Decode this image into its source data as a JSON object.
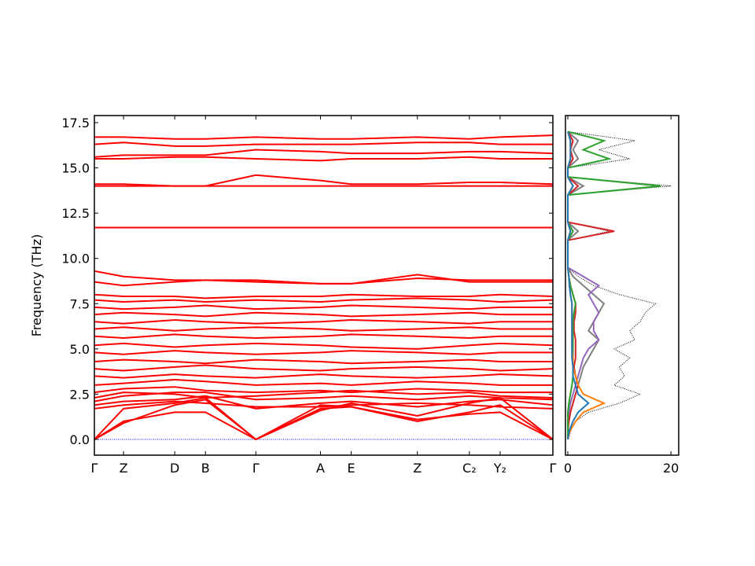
{
  "chart_data": [
    {
      "type": "line",
      "ylabel": "Frequency (THz)",
      "color": "#ff0000",
      "ylim": [
        -0.87,
        17.89
      ],
      "yticks": [
        {
          "value": 0,
          "label": "0.0"
        },
        2.5,
        {
          "value": 5,
          "label": "5.0"
        },
        7.5,
        {
          "value": 10,
          "label": "10.0"
        },
        12.5,
        {
          "value": 15,
          "label": "15.0"
        },
        17.5
      ],
      "xlim": [
        0,
        5.82
      ],
      "xticks": [
        {
          "value": 0,
          "label": "Γ"
        },
        {
          "value": 0.37,
          "label": "Z"
        },
        {
          "value": 1.02,
          "label": "D"
        },
        {
          "value": 1.41,
          "label": "B"
        },
        {
          "value": 2.05,
          "label": "Γ"
        },
        {
          "value": 2.87,
          "label": "A"
        },
        {
          "value": 3.26,
          "label": "E"
        },
        {
          "value": 4.1,
          "label": "Z"
        },
        {
          "value": 4.76,
          "label": "C₂"
        },
        {
          "value": 5.15,
          "label": "Y₂"
        },
        {
          "value": 5.82,
          "label": "Γ"
        }
      ],
      "x": [
        0,
        0.37,
        1.02,
        1.41,
        2.05,
        2.87,
        3.26,
        4.1,
        4.76,
        5.15,
        5.82
      ],
      "series": [
        {
          "color": "#0000ff",
          "style": "dotted",
          "values": [
            0,
            0,
            0,
            0,
            0,
            0,
            0,
            0,
            0,
            0,
            0
          ]
        },
        {
          "values": [
            0,
            1.0,
            1.5,
            1.5,
            0,
            1.7,
            1.8,
            1.1,
            1.4,
            1.5,
            0
          ]
        },
        {
          "values": [
            0,
            0.9,
            1.9,
            2.2,
            0,
            1.9,
            1.8,
            1.0,
            1.5,
            1.9,
            0
          ]
        },
        {
          "values": [
            0,
            1.7,
            2.0,
            2.3,
            0,
            1.6,
            2.0,
            1.3,
            2.0,
            2.3,
            0
          ]
        },
        {
          "values": [
            1.7,
            1.9,
            2.1,
            2.0,
            1.8,
            1.8,
            1.9,
            2.0,
            1.9,
            1.8,
            1.7
          ]
        },
        {
          "values": [
            1.9,
            2.1,
            2.2,
            2.4,
            1.7,
            2.0,
            2.1,
            1.8,
            2.1,
            2.2,
            1.9
          ]
        },
        {
          "values": [
            2.1,
            2.4,
            2.6,
            2.6,
            2.2,
            2.3,
            2.4,
            2.2,
            2.4,
            2.3,
            2.2
          ]
        },
        {
          "values": [
            2.3,
            2.6,
            2.5,
            2.3,
            2.4,
            2.6,
            2.7,
            2.5,
            2.6,
            2.4,
            2.3
          ]
        },
        {
          "values": [
            2.6,
            2.8,
            2.9,
            2.7,
            2.6,
            2.7,
            2.6,
            2.8,
            2.7,
            2.6,
            2.6
          ]
        },
        {
          "values": [
            3.0,
            3.1,
            3.3,
            3.2,
            3.0,
            3.1,
            3.0,
            3.2,
            3.1,
            3.0,
            3.0
          ]
        },
        {
          "values": [
            3.5,
            3.4,
            3.6,
            3.5,
            3.4,
            3.6,
            3.5,
            3.4,
            3.5,
            3.6,
            3.5
          ]
        },
        {
          "values": [
            3.9,
            3.8,
            4.0,
            4.1,
            3.9,
            3.8,
            3.9,
            4.0,
            3.9,
            3.8,
            3.9
          ]
        },
        {
          "values": [
            4.3,
            4.4,
            4.3,
            4.2,
            4.4,
            4.3,
            4.2,
            4.3,
            4.4,
            4.3,
            4.3
          ]
        },
        {
          "values": [
            4.8,
            4.7,
            4.9,
            4.8,
            4.7,
            4.8,
            4.9,
            4.8,
            4.7,
            4.8,
            4.8
          ]
        },
        {
          "values": [
            5.2,
            5.3,
            5.1,
            5.2,
            5.3,
            5.2,
            5.1,
            5.0,
            5.2,
            5.3,
            5.2
          ]
        },
        {
          "values": [
            5.7,
            5.6,
            5.8,
            5.7,
            5.6,
            5.7,
            5.8,
            5.7,
            5.6,
            5.7,
            5.7
          ]
        },
        {
          "values": [
            6.1,
            6.2,
            6.0,
            6.1,
            6.2,
            6.1,
            6.0,
            6.1,
            6.2,
            6.1,
            6.1
          ]
        },
        {
          "values": [
            6.5,
            6.4,
            6.6,
            6.5,
            6.4,
            6.5,
            6.6,
            6.5,
            6.4,
            6.5,
            6.5
          ]
        },
        {
          "values": [
            6.9,
            7.0,
            6.9,
            6.8,
            7.0,
            6.9,
            6.8,
            6.9,
            7.0,
            6.9,
            6.9
          ]
        },
        {
          "values": [
            7.3,
            7.2,
            7.3,
            7.4,
            7.2,
            7.3,
            7.4,
            7.3,
            7.2,
            7.3,
            7.3
          ]
        },
        {
          "values": [
            7.7,
            7.6,
            7.7,
            7.6,
            7.7,
            7.6,
            7.7,
            7.8,
            7.7,
            7.6,
            7.7
          ]
        },
        {
          "values": [
            8.0,
            7.9,
            7.9,
            7.8,
            7.9,
            7.9,
            8.0,
            7.9,
            7.9,
            8.0,
            7.9
          ]
        },
        {
          "values": [
            8.7,
            8.5,
            8.7,
            8.8,
            8.8,
            8.6,
            8.6,
            9.1,
            8.7,
            8.7,
            8.7
          ]
        },
        {
          "values": [
            9.3,
            9.0,
            8.8,
            8.8,
            8.7,
            8.6,
            8.6,
            8.9,
            8.8,
            8.8,
            8.8
          ]
        },
        {
          "values": [
            11.7,
            11.7,
            11.7,
            11.7,
            11.7,
            11.7,
            11.7,
            11.7,
            11.7,
            11.7,
            11.7
          ]
        },
        {
          "values": [
            14.0,
            14.0,
            14.0,
            14.0,
            14.0,
            14.0,
            14.0,
            14.0,
            14.0,
            14.0,
            14.0
          ]
        },
        {
          "values": [
            14.1,
            14.1,
            14.0,
            14.0,
            14.6,
            14.3,
            14.1,
            14.1,
            14.2,
            14.2,
            14.1
          ]
        },
        {
          "values": [
            15.5,
            15.5,
            15.6,
            15.6,
            15.5,
            15.4,
            15.5,
            15.5,
            15.6,
            15.5,
            15.5
          ]
        },
        {
          "values": [
            15.6,
            15.7,
            15.7,
            15.7,
            16.0,
            15.9,
            15.8,
            15.8,
            15.9,
            15.9,
            15.8
          ]
        },
        {
          "values": [
            16.3,
            16.4,
            16.2,
            16.2,
            16.3,
            16.3,
            16.3,
            16.4,
            16.4,
            16.3,
            16.3
          ]
        },
        {
          "values": [
            16.7,
            16.7,
            16.6,
            16.6,
            16.7,
            16.6,
            16.6,
            16.7,
            16.6,
            16.7,
            16.8
          ]
        }
      ]
    },
    {
      "type": "dos",
      "ylim": [
        -0.87,
        17.89
      ],
      "xlim": [
        -0.46,
        21.5
      ],
      "xticks": [
        0,
        20
      ],
      "y": [
        0,
        0.5,
        1,
        1.5,
        2,
        2.5,
        3,
        3.5,
        4,
        4.5,
        5,
        5.5,
        6,
        6.5,
        7,
        7.5,
        8,
        8.5,
        9,
        9.5,
        10,
        10.5,
        11,
        11.5,
        12,
        12.5,
        13,
        13.5,
        14,
        14.5,
        15,
        15.5,
        16,
        16.5,
        17
      ],
      "series": [
        {
          "color": "#000000",
          "style": "dotted",
          "values": [
            0,
            0.5,
            1.5,
            4,
            10,
            14,
            9,
            11,
            10,
            12,
            9,
            13,
            12,
            14,
            15,
            17,
            10,
            5,
            2,
            0,
            0,
            0,
            0,
            8,
            0,
            0,
            0,
            0,
            20,
            0,
            0,
            12,
            6,
            13,
            0
          ]
        },
        {
          "color": "#7f7f7f",
          "values": [
            0,
            0,
            0.2,
            0.5,
            1,
            1.5,
            2,
            2.5,
            3,
            4,
            5,
            6,
            4,
            5,
            6,
            7,
            5,
            3,
            1,
            0,
            0,
            0,
            0,
            2,
            0,
            0,
            0,
            0,
            3,
            0,
            0,
            2,
            1,
            2,
            0
          ]
        },
        {
          "color": "#9467bd",
          "values": [
            0,
            0,
            0,
            0.2,
            0.5,
            1,
            1.5,
            2,
            2.5,
            3,
            4,
            6,
            5,
            5,
            6,
            5,
            4,
            6,
            3,
            0,
            0,
            0,
            0,
            1,
            0,
            0,
            0,
            0,
            1,
            0,
            0,
            1,
            0.5,
            1,
            0
          ]
        },
        {
          "color": "#d62728",
          "values": [
            0,
            0,
            0.2,
            0.5,
            1,
            1.5,
            2,
            1.5,
            1.2,
            1.5,
            1.5,
            1.5,
            1.2,
            1.2,
            1.5,
            1.5,
            1,
            0.5,
            0.2,
            0,
            0,
            0,
            0,
            9,
            0,
            0,
            0,
            0,
            2,
            0,
            0,
            1,
            0.5,
            1,
            0
          ]
        },
        {
          "color": "#2ca02c",
          "values": [
            0,
            0,
            0,
            0,
            0.2,
            0.5,
            0.8,
            1,
            1,
            1,
            1,
            1,
            1,
            1,
            1.2,
            1.5,
            1,
            0.5,
            0.2,
            0,
            0,
            0,
            0,
            1,
            0,
            0,
            0,
            0,
            18,
            0,
            0,
            8,
            3,
            7,
            0
          ]
        },
        {
          "color": "#ff7f0e",
          "values": [
            0,
            0.5,
            1.5,
            3,
            7,
            3,
            2,
            1.5,
            1,
            1,
            0.8,
            0.8,
            0.8,
            0.8,
            0.8,
            0.8,
            0.5,
            0.3,
            0.2,
            0,
            0,
            0,
            0,
            0.5,
            0,
            0,
            0,
            0,
            1,
            0,
            0,
            0.5,
            0.5,
            0.5,
            0
          ]
        },
        {
          "color": "#1f77b4",
          "values": [
            0,
            0.3,
            1,
            2,
            4,
            2,
            1.5,
            1,
            1,
            0.8,
            0.8,
            0.8,
            0.8,
            0.8,
            0.8,
            0.8,
            0.5,
            0.3,
            0.2,
            0,
            0,
            0,
            0,
            0.5,
            0,
            0,
            0,
            0,
            1,
            0,
            0,
            0.5,
            0.5,
            0.5,
            0
          ]
        }
      ]
    }
  ]
}
